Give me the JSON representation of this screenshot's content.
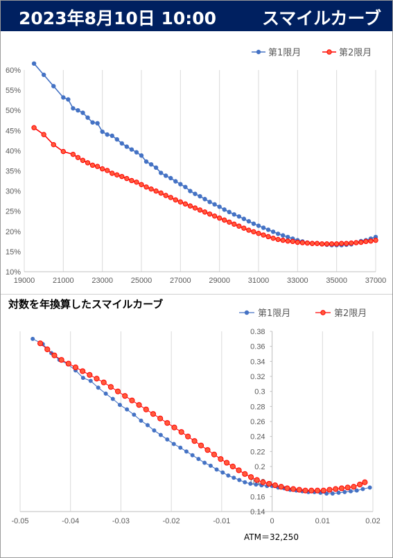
{
  "header": {
    "date": "2023年8月10日 10:00",
    "title": "スマイルカーブ"
  },
  "colors": {
    "header_bg": "#002060",
    "series1": "#4472C4",
    "series2": "#FF0000",
    "series2_fill": "#FF5B3C",
    "grid": "#D9D9D9"
  },
  "chart_data": [
    {
      "type": "line",
      "title": "",
      "xlabel": "",
      "ylabel": "",
      "xlim": [
        19000,
        37000
      ],
      "ylim": [
        0.1,
        0.6
      ],
      "x_ticks": [
        "19000",
        "21000",
        "23000",
        "25000",
        "27000",
        "29000",
        "31000",
        "33000",
        "35000",
        "37000"
      ],
      "y_ticks": [
        "10%",
        "15%",
        "20%",
        "25%",
        "30%",
        "35%",
        "40%",
        "45%",
        "50%",
        "55%",
        "60%"
      ],
      "grid": "vertical",
      "legend": "top-right",
      "series": [
        {
          "name": "第1限月",
          "points": [
            [
              19500,
              0.616
            ],
            [
              20000,
              0.588
            ],
            [
              20500,
              0.56
            ],
            [
              21000,
              0.532
            ],
            [
              21250,
              0.527
            ],
            [
              21500,
              0.505
            ],
            [
              21750,
              0.5
            ],
            [
              22000,
              0.494
            ],
            [
              22250,
              0.482
            ],
            [
              22500,
              0.47
            ],
            [
              22750,
              0.468
            ],
            [
              23000,
              0.447
            ],
            [
              23250,
              0.44
            ],
            [
              23500,
              0.437
            ],
            [
              23750,
              0.428
            ],
            [
              24000,
              0.418
            ],
            [
              24250,
              0.41
            ],
            [
              24500,
              0.403
            ],
            [
              24750,
              0.396
            ],
            [
              25000,
              0.388
            ],
            [
              25250,
              0.373
            ],
            [
              25500,
              0.366
            ],
            [
              25750,
              0.358
            ],
            [
              26000,
              0.345
            ],
            [
              26250,
              0.338
            ],
            [
              26500,
              0.332
            ],
            [
              26750,
              0.324
            ],
            [
              27000,
              0.317
            ],
            [
              27250,
              0.31
            ],
            [
              27500,
              0.3
            ],
            [
              27750,
              0.293
            ],
            [
              28000,
              0.287
            ],
            [
              28250,
              0.28
            ],
            [
              28500,
              0.273
            ],
            [
              28750,
              0.267
            ],
            [
              29000,
              0.261
            ],
            [
              29250,
              0.254
            ],
            [
              29500,
              0.248
            ],
            [
              29750,
              0.242
            ],
            [
              30000,
              0.237
            ],
            [
              30250,
              0.231
            ],
            [
              30500,
              0.225
            ],
            [
              30750,
              0.219
            ],
            [
              31000,
              0.214
            ],
            [
              31250,
              0.209
            ],
            [
              31500,
              0.204
            ],
            [
              31750,
              0.199
            ],
            [
              32000,
              0.194
            ],
            [
              32250,
              0.19
            ],
            [
              32500,
              0.186
            ],
            [
              32750,
              0.182
            ],
            [
              33000,
              0.178
            ],
            [
              33250,
              0.175
            ],
            [
              33500,
              0.172
            ],
            [
              33750,
              0.171
            ],
            [
              34000,
              0.17
            ],
            [
              34250,
              0.168
            ],
            [
              34500,
              0.167
            ],
            [
              34750,
              0.166
            ],
            [
              35000,
              0.166
            ],
            [
              35250,
              0.166
            ],
            [
              35500,
              0.167
            ],
            [
              35750,
              0.168
            ],
            [
              36000,
              0.172
            ],
            [
              36250,
              0.176
            ],
            [
              36500,
              0.178
            ],
            [
              36750,
              0.182
            ],
            [
              37000,
              0.186
            ]
          ]
        },
        {
          "name": "第2限月",
          "points": [
            [
              19500,
              0.457
            ],
            [
              20000,
              0.44
            ],
            [
              20500,
              0.415
            ],
            [
              21000,
              0.398
            ],
            [
              21500,
              0.391
            ],
            [
              21750,
              0.383
            ],
            [
              22000,
              0.376
            ],
            [
              22250,
              0.37
            ],
            [
              22500,
              0.364
            ],
            [
              22750,
              0.361
            ],
            [
              23000,
              0.355
            ],
            [
              23250,
              0.351
            ],
            [
              23500,
              0.344
            ],
            [
              23750,
              0.34
            ],
            [
              24000,
              0.336
            ],
            [
              24250,
              0.331
            ],
            [
              24500,
              0.326
            ],
            [
              24750,
              0.322
            ],
            [
              25000,
              0.316
            ],
            [
              25250,
              0.31
            ],
            [
              25500,
              0.305
            ],
            [
              25750,
              0.3
            ],
            [
              26000,
              0.295
            ],
            [
              26250,
              0.289
            ],
            [
              26500,
              0.284
            ],
            [
              26750,
              0.278
            ],
            [
              27000,
              0.273
            ],
            [
              27250,
              0.268
            ],
            [
              27500,
              0.263
            ],
            [
              27750,
              0.258
            ],
            [
              28000,
              0.253
            ],
            [
              28250,
              0.248
            ],
            [
              28500,
              0.243
            ],
            [
              28750,
              0.238
            ],
            [
              29000,
              0.233
            ],
            [
              29250,
              0.228
            ],
            [
              29500,
              0.223
            ],
            [
              29750,
              0.218
            ],
            [
              30000,
              0.213
            ],
            [
              30250,
              0.208
            ],
            [
              30500,
              0.203
            ],
            [
              30750,
              0.199
            ],
            [
              31000,
              0.195
            ],
            [
              31250,
              0.191
            ],
            [
              31500,
              0.187
            ],
            [
              31750,
              0.183
            ],
            [
              32000,
              0.18
            ],
            [
              32250,
              0.178
            ],
            [
              32500,
              0.176
            ],
            [
              32750,
              0.175
            ],
            [
              33000,
              0.173
            ],
            [
              33250,
              0.172
            ],
            [
              33500,
              0.171
            ],
            [
              33750,
              0.17
            ],
            [
              34000,
              0.17
            ],
            [
              34250,
              0.169
            ],
            [
              34500,
              0.169
            ],
            [
              34750,
              0.169
            ],
            [
              35000,
              0.169
            ],
            [
              35250,
              0.17
            ],
            [
              35500,
              0.17
            ],
            [
              35750,
              0.171
            ],
            [
              36000,
              0.172
            ],
            [
              36250,
              0.173
            ],
            [
              36500,
              0.175
            ],
            [
              36750,
              0.176
            ],
            [
              37000,
              0.178
            ]
          ]
        }
      ]
    },
    {
      "type": "scatter",
      "title": "対数を年換算したスマイルカーブ",
      "xlabel": "",
      "ylabel": "",
      "xlim": [
        -0.05,
        0.02
      ],
      "ylim": [
        0.14,
        0.38
      ],
      "x_ticks": [
        "-0.05",
        "-0.04",
        "-0.03",
        "-0.02",
        "-0.01",
        "0",
        "0.01",
        "0.02"
      ],
      "y_ticks": [
        "0.14",
        "0.16",
        "0.18",
        "0.2",
        "0.22",
        "0.24",
        "0.26",
        "0.28",
        "0.3",
        "0.32",
        "0.34",
        "0.36",
        "0.38"
      ],
      "grid": "vertical",
      "legend": "top-right",
      "annotation": "ATM＝32,250",
      "series": [
        {
          "name": "第1限月",
          "points": [
            [
              -0.0475,
              0.37
            ],
            [
              -0.0455,
              0.363
            ],
            [
              -0.0438,
              0.351
            ],
            [
              -0.0422,
              0.342
            ],
            [
              -0.0405,
              0.336
            ],
            [
              -0.039,
              0.328
            ],
            [
              -0.0375,
              0.318
            ],
            [
              -0.036,
              0.314
            ],
            [
              -0.0345,
              0.305
            ],
            [
              -0.033,
              0.297
            ],
            [
              -0.0316,
              0.29
            ],
            [
              -0.0302,
              0.282
            ],
            [
              -0.0288,
              0.276
            ],
            [
              -0.0274,
              0.269
            ],
            [
              -0.026,
              0.261
            ],
            [
              -0.0247,
              0.255
            ],
            [
              -0.0234,
              0.248
            ],
            [
              -0.0221,
              0.242
            ],
            [
              -0.0208,
              0.236
            ],
            [
              -0.0195,
              0.23
            ],
            [
              -0.0182,
              0.225
            ],
            [
              -0.017,
              0.22
            ],
            [
              -0.0158,
              0.215
            ],
            [
              -0.0146,
              0.21
            ],
            [
              -0.0134,
              0.205
            ],
            [
              -0.0122,
              0.201
            ],
            [
              -0.011,
              0.196
            ],
            [
              -0.0098,
              0.192
            ],
            [
              -0.0087,
              0.188
            ],
            [
              -0.0076,
              0.185
            ],
            [
              -0.0065,
              0.182
            ],
            [
              -0.0054,
              0.179
            ],
            [
              -0.0043,
              0.177
            ],
            [
              -0.0032,
              0.176
            ],
            [
              -0.0021,
              0.175
            ],
            [
              -0.001,
              0.174
            ],
            [
              0.0,
              0.174
            ],
            [
              0.0012,
              0.172
            ],
            [
              0.0024,
              0.171
            ],
            [
              0.0036,
              0.169
            ],
            [
              0.0048,
              0.168
            ],
            [
              0.006,
              0.167
            ],
            [
              0.0072,
              0.166
            ],
            [
              0.0084,
              0.166
            ],
            [
              0.0096,
              0.165
            ],
            [
              0.0108,
              0.164
            ],
            [
              0.012,
              0.164
            ],
            [
              0.0132,
              0.165
            ],
            [
              0.0144,
              0.166
            ],
            [
              0.0156,
              0.167
            ],
            [
              0.0168,
              0.168
            ],
            [
              0.018,
              0.17
            ],
            [
              0.0194,
              0.172
            ]
          ]
        },
        {
          "name": "第2限月",
          "points": [
            [
              -0.046,
              0.364
            ],
            [
              -0.0446,
              0.356
            ],
            [
              -0.0432,
              0.348
            ],
            [
              -0.0418,
              0.342
            ],
            [
              -0.0404,
              0.337
            ],
            [
              -0.039,
              0.332
            ],
            [
              -0.0376,
              0.327
            ],
            [
              -0.0362,
              0.322
            ],
            [
              -0.0348,
              0.317
            ],
            [
              -0.0334,
              0.312
            ],
            [
              -0.032,
              0.306
            ],
            [
              -0.0306,
              0.3
            ],
            [
              -0.0292,
              0.294
            ],
            [
              -0.0278,
              0.288
            ],
            [
              -0.0264,
              0.282
            ],
            [
              -0.025,
              0.276
            ],
            [
              -0.0236,
              0.27
            ],
            [
              -0.0222,
              0.264
            ],
            [
              -0.0208,
              0.258
            ],
            [
              -0.0194,
              0.252
            ],
            [
              -0.018,
              0.246
            ],
            [
              -0.0167,
              0.24
            ],
            [
              -0.0154,
              0.234
            ],
            [
              -0.0141,
              0.228
            ],
            [
              -0.0128,
              0.222
            ],
            [
              -0.0115,
              0.216
            ],
            [
              -0.0102,
              0.21
            ],
            [
              -0.009,
              0.205
            ],
            [
              -0.0078,
              0.2
            ],
            [
              -0.0066,
              0.195
            ],
            [
              -0.0054,
              0.19
            ],
            [
              -0.0042,
              0.186
            ],
            [
              -0.003,
              0.182
            ],
            [
              -0.0018,
              0.179
            ],
            [
              -0.0006,
              0.177
            ],
            [
              0.0006,
              0.175
            ],
            [
              0.0018,
              0.173
            ],
            [
              0.003,
              0.171
            ],
            [
              0.0042,
              0.17
            ],
            [
              0.0054,
              0.169
            ],
            [
              0.0066,
              0.168
            ],
            [
              0.0078,
              0.168
            ],
            [
              0.009,
              0.168
            ],
            [
              0.0102,
              0.168
            ],
            [
              0.0114,
              0.169
            ],
            [
              0.0126,
              0.17
            ],
            [
              0.0138,
              0.171
            ],
            [
              0.015,
              0.172
            ],
            [
              0.0162,
              0.173
            ],
            [
              0.0174,
              0.176
            ],
            [
              0.0184,
              0.179
            ]
          ]
        }
      ]
    }
  ]
}
